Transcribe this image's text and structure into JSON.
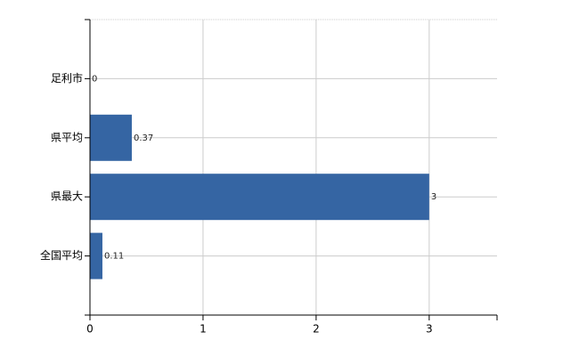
{
  "chart_data": {
    "type": "bar",
    "orientation": "horizontal",
    "categories": [
      "足利市",
      "県平均",
      "県最大",
      "全国平均"
    ],
    "values": [
      0,
      0.37,
      3,
      0.11
    ],
    "color": "#3565a3",
    "xlim": [
      0,
      3.6
    ],
    "xticks": [
      0,
      1,
      2,
      3
    ],
    "grid": true
  }
}
